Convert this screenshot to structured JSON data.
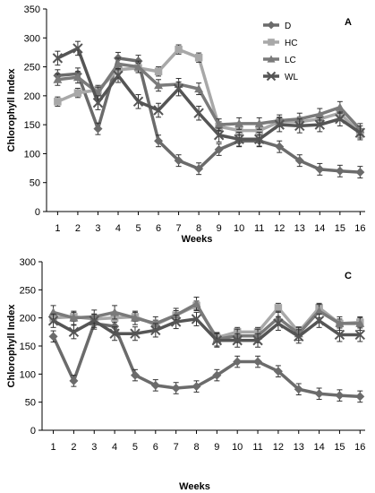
{
  "chart_data": [
    {
      "type": "line",
      "panel_label": "A",
      "xlabel": "Weeks",
      "ylabel": "Chlorophyll Index",
      "categories": [
        "1",
        "2",
        "3",
        "4",
        "5",
        "6",
        "7",
        "8",
        "9",
        "10",
        "11",
        "12",
        "13",
        "14",
        "15",
        "16"
      ],
      "ylim": [
        0,
        350
      ],
      "yticks": [
        0,
        50,
        100,
        150,
        200,
        250,
        300,
        350
      ],
      "grid": false,
      "legend": "top-right",
      "error_bars": true,
      "series": [
        {
          "name": "D",
          "color": "#6b6b6b",
          "marker": "diamond",
          "values": [
            235,
            238,
            143,
            265,
            260,
            122,
            88,
            74,
            107,
            122,
            122,
            112,
            88,
            73,
            70,
            68
          ],
          "errors": [
            10,
            10,
            10,
            10,
            10,
            10,
            10,
            10,
            10,
            10,
            10,
            10,
            10,
            10,
            10,
            10
          ]
        },
        {
          "name": "HC",
          "color": "#a8a8a8",
          "marker": "square",
          "values": [
            190,
            205,
            210,
            245,
            248,
            242,
            280,
            266,
            147,
            140,
            140,
            155,
            155,
            160,
            170,
            135
          ],
          "errors": [
            8,
            8,
            8,
            8,
            8,
            8,
            8,
            8,
            8,
            8,
            8,
            8,
            8,
            8,
            8,
            8
          ]
        },
        {
          "name": "LC",
          "color": "#7a7a7a",
          "marker": "triangle",
          "values": [
            228,
            232,
            205,
            255,
            250,
            218,
            220,
            212,
            150,
            152,
            152,
            157,
            160,
            168,
            180,
            142
          ],
          "errors": [
            10,
            10,
            10,
            10,
            10,
            10,
            10,
            10,
            10,
            10,
            10,
            10,
            10,
            10,
            10,
            10
          ]
        },
        {
          "name": "WL",
          "color": "#555555",
          "marker": "x",
          "values": [
            265,
            282,
            188,
            235,
            190,
            175,
            212,
            170,
            132,
            125,
            125,
            150,
            148,
            150,
            160,
            136
          ],
          "errors": [
            12,
            12,
            12,
            12,
            12,
            12,
            12,
            12,
            12,
            12,
            12,
            12,
            12,
            12,
            12,
            12
          ]
        }
      ]
    },
    {
      "type": "line",
      "panel_label": "C",
      "xlabel": "Weeks",
      "ylabel": "Chlorophyll Index",
      "categories": [
        "1",
        "2",
        "3",
        "4",
        "5",
        "6",
        "7",
        "8",
        "9",
        "10",
        "11",
        "12",
        "13",
        "14",
        "15",
        "16"
      ],
      "ylim": [
        0,
        300
      ],
      "yticks": [
        0,
        50,
        100,
        150,
        200,
        250,
        300
      ],
      "grid": false,
      "error_bars": true,
      "series": [
        {
          "name": "D",
          "color": "#6b6b6b",
          "marker": "diamond",
          "values": [
            167,
            88,
            190,
            185,
            98,
            80,
            75,
            78,
            98,
            122,
            122,
            105,
            73,
            65,
            62,
            60
          ],
          "errors": [
            10,
            10,
            10,
            10,
            10,
            10,
            10,
            10,
            10,
            10,
            10,
            10,
            10,
            10,
            10,
            10
          ]
        },
        {
          "name": "HC",
          "color": "#a8a8a8",
          "marker": "square",
          "values": [
            200,
            202,
            198,
            200,
            202,
            188,
            205,
            222,
            165,
            175,
            175,
            218,
            175,
            218,
            190,
            192
          ],
          "errors": [
            8,
            8,
            8,
            8,
            8,
            8,
            8,
            8,
            8,
            8,
            8,
            8,
            8,
            8,
            8,
            8
          ]
        },
        {
          "name": "LC",
          "color": "#7a7a7a",
          "marker": "triangle",
          "values": [
            210,
            200,
            202,
            210,
            200,
            190,
            205,
            225,
            162,
            168,
            168,
            200,
            172,
            212,
            190,
            190
          ],
          "errors": [
            12,
            12,
            12,
            12,
            12,
            12,
            12,
            12,
            12,
            12,
            12,
            12,
            12,
            12,
            12,
            12
          ]
        },
        {
          "name": "WL",
          "color": "#555555",
          "marker": "x",
          "values": [
            195,
            175,
            195,
            172,
            172,
            178,
            193,
            198,
            160,
            160,
            160,
            190,
            167,
            195,
            170,
            170
          ],
          "errors": [
            12,
            12,
            12,
            12,
            12,
            12,
            12,
            12,
            12,
            12,
            12,
            12,
            12,
            12,
            12,
            12
          ]
        }
      ]
    }
  ]
}
